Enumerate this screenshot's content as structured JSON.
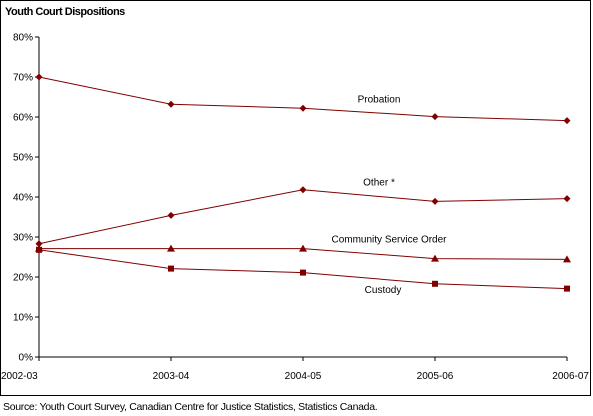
{
  "title": "Youth Court Dispositions",
  "source": "Source:  Youth Court Survey, Canadian Centre for Justice Statistics, Statistics Canada.",
  "chart_data": {
    "type": "line",
    "title": "Youth Court Dispositions",
    "xlabel": "",
    "ylabel": "",
    "categories": [
      "2002-03",
      "2003-04",
      "2004-05",
      "2005-06",
      "2006-07"
    ],
    "yticks": [
      "0%",
      "10%",
      "20%",
      "30%",
      "40%",
      "50%",
      "60%",
      "70%",
      "80%"
    ],
    "ylim": [
      0,
      80
    ],
    "grid": false,
    "line_color": "#800000",
    "series": [
      {
        "name": "Probation",
        "marker": "diamond",
        "values": [
          70,
          63.2,
          62.2,
          60.1,
          59.1
        ]
      },
      {
        "name": "Other *",
        "marker": "diamond",
        "values": [
          28.3,
          35.4,
          41.8,
          38.9,
          39.6
        ]
      },
      {
        "name": "Community Service Order",
        "marker": "triangle",
        "values": [
          27.1,
          27.1,
          27.1,
          24.6,
          24.4
        ]
      },
      {
        "name": "Custody",
        "marker": "square",
        "values": [
          26.8,
          22.1,
          21.1,
          18.3,
          17.1
        ]
      }
    ]
  }
}
